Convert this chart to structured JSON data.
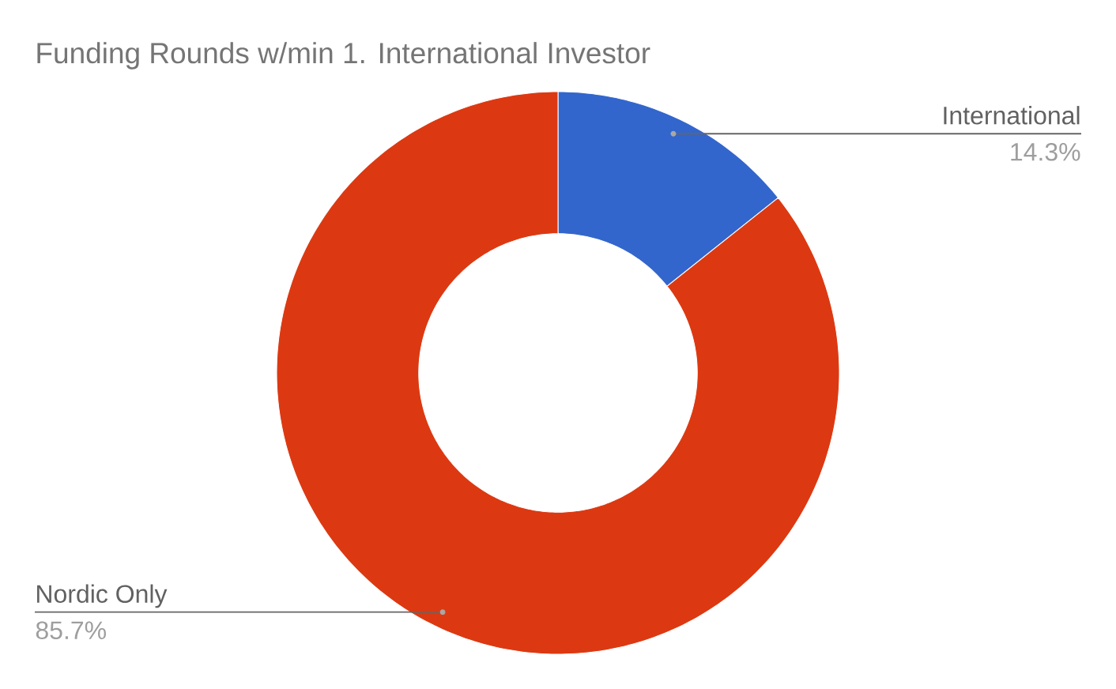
{
  "chart_data": {
    "type": "donut",
    "title": "Funding Rounds w/min 1. International Investor",
    "categories": [
      "International",
      "Nordic Only"
    ],
    "values": [
      14.3,
      85.7
    ],
    "colors": [
      "#3366cc",
      "#dc3912"
    ],
    "value_labels": [
      "14.3%",
      "85.7%"
    ]
  }
}
